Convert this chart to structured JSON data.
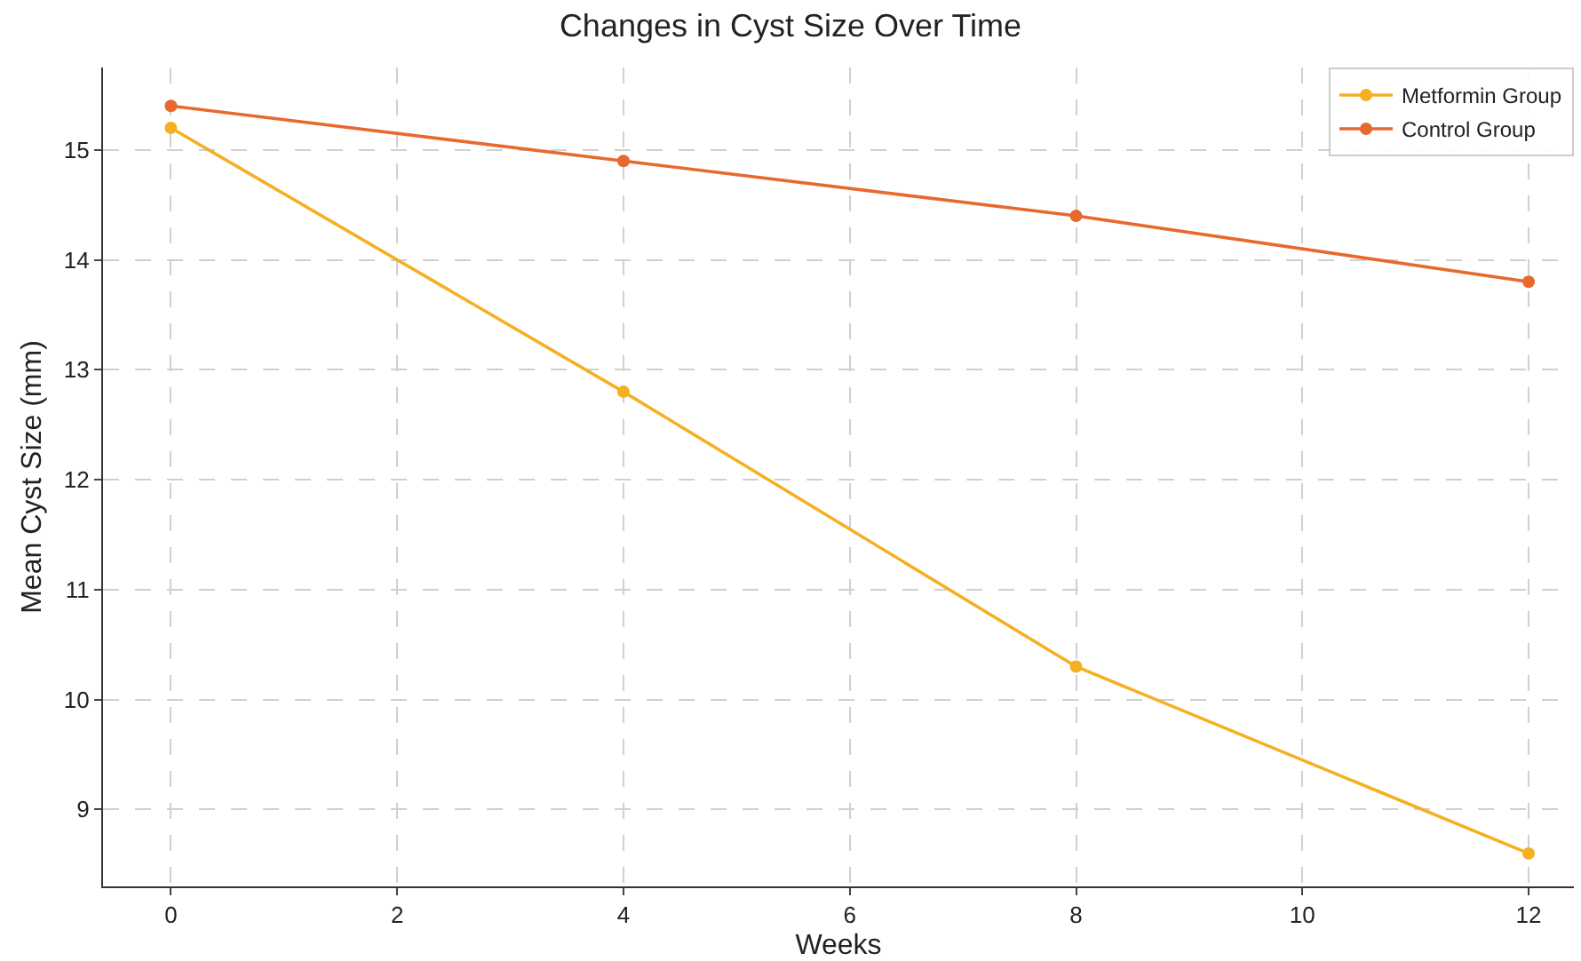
{
  "chart_data": {
    "type": "line",
    "title": "Changes in Cyst Size Over Time",
    "xlabel": "Weeks",
    "ylabel": "Mean Cyst Size (mm)",
    "x": [
      0,
      4,
      8,
      12
    ],
    "series": [
      {
        "name": "Metformin Group",
        "color": "#f4b022",
        "values": [
          15.2,
          12.8,
          10.3,
          8.6
        ]
      },
      {
        "name": "Control Group",
        "color": "#e8692d",
        "values": [
          15.4,
          14.9,
          14.4,
          13.8
        ]
      }
    ],
    "xlim": [
      -0.6,
      12.4
    ],
    "xticks": [
      0,
      2,
      4,
      6,
      8,
      10,
      12
    ],
    "ylim": [
      8.3,
      15.75
    ],
    "yticks": [
      9,
      10,
      11,
      12,
      13,
      14,
      15
    ],
    "grid": true,
    "legend": "top right",
    "marker": "circle",
    "line_style": "solid"
  }
}
